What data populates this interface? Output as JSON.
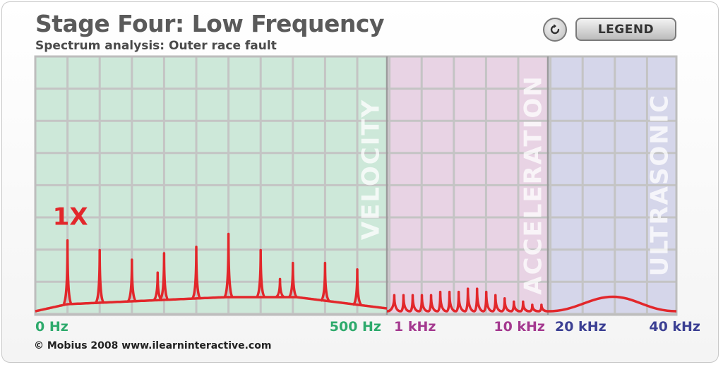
{
  "header": {
    "title": "Stage Four: Low Frequency",
    "subtitle": "Spectrum analysis: Outer race fault",
    "legend_label": "LEGEND"
  },
  "icons": {
    "reset": "refresh-icon"
  },
  "footer": {
    "copyright": "© Mobius 2008 www.ilearninteractive.com"
  },
  "colors": {
    "velocity_zone": "#cde8d9",
    "acceleration_zone": "#e8d3e4",
    "ultrasonic_zone": "#d5d6ea",
    "signal": "#e2272b",
    "velocity_text": "#2eaa6c",
    "acceleration_text": "#a4398f",
    "ultrasonic_text": "#3b3f93"
  },
  "chart_data": {
    "type": "line",
    "title": "Stage Four: Low Frequency",
    "subtitle": "Spectrum analysis: Outer race fault",
    "grid": true,
    "zones": [
      {
        "name": "VELOCITY",
        "from": "0 Hz",
        "to": "500 Hz"
      },
      {
        "name": "ACCELERATION",
        "from": "1 kHz",
        "to": "10 kHz"
      },
      {
        "name": "ULTRASONIC",
        "from": "20 kHz",
        "to": "40 kHz"
      }
    ],
    "x_tick_labels": [
      "0 Hz",
      "500 Hz",
      "1 kHz",
      "10 kHz",
      "20 kHz",
      "40 kHz"
    ],
    "annotations": [
      {
        "text": "1X",
        "at_peak": 0
      }
    ],
    "velocity_peaks": {
      "x_grid_units": [
        1,
        2,
        3,
        3.8,
        4,
        5,
        6,
        7,
        7.6,
        8,
        9,
        10
      ],
      "amplitude_grid_units": [
        2.2,
        1.9,
        1.6,
        1.2,
        1.8,
        2.0,
        2.4,
        1.9,
        1.0,
        1.5,
        1.5,
        1.3
      ]
    },
    "acceleration_ripple_amplitudes": [
      0.5,
      0.5,
      0.5,
      0.5,
      0.5,
      0.6,
      0.6,
      0.6,
      0.7,
      0.7,
      0.6,
      0.5,
      0.4,
      0.3,
      0.3,
      0.2,
      0.2
    ],
    "ultrasonic_hump_amplitude": 0.45
  }
}
